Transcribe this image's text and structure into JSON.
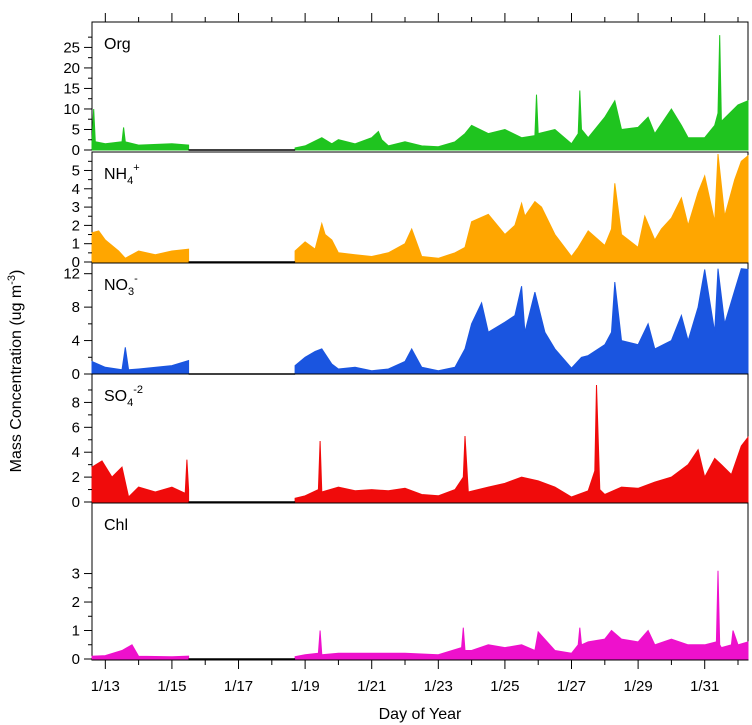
{
  "chart_data": {
    "type": "area",
    "xlabel": "Day of Year",
    "ylabel": "Mass Concentration (ug m⁻³)",
    "xlim": [
      12.6,
      32.3
    ],
    "x_tick_labels": [
      {
        "x": 13,
        "label": "1/13"
      },
      {
        "x": 15,
        "label": "1/15"
      },
      {
        "x": 17,
        "label": "1/17"
      },
      {
        "x": 19,
        "label": "1/19"
      },
      {
        "x": 21,
        "label": "1/21"
      },
      {
        "x": 23,
        "label": "1/23"
      },
      {
        "x": 25,
        "label": "1/25"
      },
      {
        "x": 27,
        "label": "1/27"
      },
      {
        "x": 29,
        "label": "1/29"
      },
      {
        "x": 31,
        "label": "1/31"
      }
    ],
    "data_gap": [
      15.5,
      18.7
    ],
    "panels": [
      {
        "key": "org",
        "label": {
          "base": "Org",
          "sub": "",
          "sup": ""
        },
        "color": "#1fc41f",
        "ylim": [
          0,
          29
        ],
        "yticks": [
          0,
          5,
          10,
          15,
          20,
          25
        ],
        "minor_step": 2.5,
        "x": [
          12.6,
          12.65,
          12.7,
          13.0,
          13.5,
          13.55,
          13.6,
          14.0,
          15.0,
          15.5,
          18.7,
          19.0,
          19.5,
          19.8,
          20.0,
          20.5,
          21.0,
          21.2,
          21.3,
          21.5,
          22.0,
          22.5,
          23.0,
          23.5,
          23.8,
          24.0,
          24.5,
          25.0,
          25.5,
          25.9,
          25.95,
          26.0,
          26.5,
          27.0,
          27.2,
          27.25,
          27.3,
          27.5,
          28.0,
          28.3,
          28.5,
          29.0,
          29.3,
          29.5,
          30.0,
          30.3,
          30.5,
          31.0,
          31.3,
          31.4,
          31.45,
          31.5,
          32.0,
          32.3
        ],
        "y": [
          2,
          10,
          2,
          1.5,
          2,
          5.5,
          2,
          1.2,
          1.5,
          1.2,
          0.5,
          1,
          3,
          1.5,
          2.5,
          1.5,
          3,
          4.5,
          2.5,
          1,
          2,
          1,
          0.8,
          2,
          4,
          6,
          4,
          5,
          3,
          3.5,
          13.5,
          4,
          5,
          1.5,
          4,
          14.5,
          5,
          3,
          8,
          12,
          5,
          5.5,
          8,
          4,
          10,
          6,
          3,
          3,
          6,
          9,
          28,
          7,
          11,
          12
        ]
      },
      {
        "key": "nh4",
        "label": {
          "base": "NH",
          "sub": "4",
          "sup": "+"
        },
        "color": "#ffa600",
        "ylim": [
          0,
          5.9
        ],
        "yticks": [
          0,
          1,
          2,
          3,
          4,
          5
        ],
        "minor_step": 0.5,
        "x": [
          12.6,
          12.8,
          13.0,
          13.4,
          13.6,
          14.0,
          14.5,
          15.0,
          15.5,
          18.7,
          19.0,
          19.3,
          19.5,
          19.6,
          19.8,
          20.0,
          20.5,
          21.0,
          21.5,
          22.0,
          22.2,
          22.5,
          23.0,
          23.5,
          23.8,
          24.0,
          24.5,
          25.0,
          25.3,
          25.5,
          25.6,
          25.9,
          26.1,
          26.5,
          27.0,
          27.2,
          27.5,
          28.0,
          28.2,
          28.3,
          28.5,
          29.0,
          29.2,
          29.5,
          29.7,
          30.0,
          30.3,
          30.5,
          30.8,
          31.0,
          31.3,
          31.4,
          31.6,
          31.9,
          32.1,
          32.3
        ],
        "y": [
          1.6,
          1.7,
          1.2,
          0.6,
          0.2,
          0.6,
          0.4,
          0.6,
          0.7,
          0.6,
          1.1,
          0.7,
          2.1,
          1.5,
          1.2,
          0.5,
          0.4,
          0.3,
          0.5,
          1.0,
          1.8,
          0.3,
          0.2,
          0.5,
          0.8,
          2.2,
          2.6,
          1.5,
          2.0,
          3.2,
          2.5,
          3.3,
          3.0,
          1.5,
          0.3,
          0.8,
          1.7,
          0.9,
          1.8,
          4.3,
          1.5,
          0.8,
          2.5,
          1.2,
          1.8,
          2.4,
          3.5,
          2.0,
          3.8,
          4.7,
          2.2,
          5.9,
          2.5,
          4.5,
          5.5,
          5.8
        ]
      },
      {
        "key": "no3",
        "label": {
          "base": "NO",
          "sub": "3",
          "sup": "-"
        },
        "color": "#1a55e0",
        "ylim": [
          0,
          12.8
        ],
        "yticks": [
          0,
          4,
          8,
          12
        ],
        "minor_step": 2,
        "x": [
          12.6,
          13.0,
          13.5,
          13.6,
          13.7,
          14.0,
          15.0,
          15.5,
          18.7,
          19.0,
          19.3,
          19.5,
          19.8,
          20.0,
          20.5,
          21.0,
          21.5,
          22.0,
          22.2,
          22.5,
          23.0,
          23.5,
          23.8,
          24.0,
          24.3,
          24.5,
          25.0,
          25.3,
          25.5,
          25.6,
          25.9,
          26.2,
          26.5,
          27.0,
          27.3,
          27.5,
          28.0,
          28.2,
          28.3,
          28.5,
          29.0,
          29.3,
          29.5,
          30.0,
          30.3,
          30.5,
          30.8,
          31.0,
          31.3,
          31.4,
          31.6,
          31.9,
          32.1,
          32.3
        ],
        "y": [
          1.5,
          0.8,
          0.5,
          3.2,
          0.5,
          0.6,
          1.0,
          1.6,
          1.0,
          2.0,
          2.7,
          3.0,
          1.2,
          0.6,
          0.8,
          0.4,
          0.6,
          1.5,
          3.0,
          0.8,
          0.4,
          0.8,
          3.0,
          6.0,
          8.5,
          5.0,
          6.2,
          7.0,
          10.5,
          5.0,
          9.8,
          5.0,
          3.0,
          0.7,
          2.0,
          2.2,
          3.5,
          5.0,
          11.0,
          4.0,
          3.5,
          6.0,
          3.0,
          4.0,
          7.0,
          4.0,
          8.0,
          12.5,
          5.0,
          12.6,
          6.0,
          10.0,
          12.6,
          12.5
        ]
      },
      {
        "key": "so4",
        "label": {
          "base": "SO",
          "sub": "4",
          "sup": "-2"
        },
        "color": "#f00b0b",
        "ylim": [
          0,
          9.4
        ],
        "yticks": [
          0,
          2,
          4,
          6,
          8
        ],
        "minor_step": 1,
        "x": [
          12.6,
          12.9,
          13.2,
          13.5,
          13.7,
          14.0,
          14.5,
          15.0,
          15.4,
          15.45,
          15.5,
          18.7,
          19.0,
          19.4,
          19.45,
          19.5,
          20.0,
          20.5,
          21.0,
          21.5,
          22.0,
          22.5,
          23.0,
          23.5,
          23.75,
          23.8,
          23.9,
          24.5,
          25.0,
          25.5,
          26.0,
          26.5,
          27.0,
          27.5,
          27.7,
          27.75,
          27.85,
          28.0,
          28.5,
          29.0,
          29.5,
          30.0,
          30.5,
          30.8,
          31.0,
          31.3,
          31.5,
          31.8,
          32.1,
          32.3
        ],
        "y": [
          2.8,
          3.3,
          2.0,
          2.8,
          0.4,
          1.2,
          0.8,
          1.2,
          0.7,
          3.4,
          1.0,
          0.3,
          0.5,
          1.0,
          4.9,
          0.8,
          1.2,
          0.9,
          1.0,
          0.9,
          1.1,
          0.6,
          0.5,
          1.0,
          2.0,
          5.3,
          0.8,
          1.2,
          1.5,
          2.0,
          1.7,
          1.2,
          0.4,
          0.9,
          2.5,
          9.4,
          1.0,
          0.6,
          1.2,
          1.1,
          1.6,
          2.0,
          3.0,
          4.2,
          2.0,
          3.5,
          3.0,
          2.2,
          4.5,
          5.2
        ]
      },
      {
        "key": "chl",
        "label": {
          "base": "Chl",
          "sub": "",
          "sup": ""
        },
        "color": "#ee11cc",
        "ylim": [
          0,
          3.3
        ],
        "yticks": [
          0,
          1,
          2,
          3
        ],
        "minor_step": 0.5,
        "x": [
          12.6,
          13.0,
          13.5,
          13.8,
          14.0,
          15.0,
          15.5,
          18.7,
          19.0,
          19.4,
          19.45,
          19.5,
          20.0,
          21.0,
          22.0,
          23.0,
          23.7,
          23.75,
          23.8,
          24.0,
          24.5,
          25.0,
          25.5,
          25.9,
          26.0,
          26.5,
          27.0,
          27.2,
          27.25,
          27.3,
          27.5,
          28.0,
          28.2,
          28.5,
          29.0,
          29.3,
          29.5,
          30.0,
          30.5,
          31.0,
          31.35,
          31.4,
          31.45,
          31.5,
          31.8,
          31.85,
          32.0,
          32.3
        ],
        "y": [
          0.1,
          0.12,
          0.3,
          0.5,
          0.1,
          0.08,
          0.1,
          0.08,
          0.15,
          0.2,
          1.0,
          0.15,
          0.2,
          0.2,
          0.2,
          0.15,
          0.4,
          1.1,
          0.3,
          0.3,
          0.5,
          0.4,
          0.5,
          0.3,
          0.95,
          0.3,
          0.2,
          0.5,
          1.1,
          0.5,
          0.6,
          0.7,
          1.0,
          0.7,
          0.6,
          1.0,
          0.5,
          0.7,
          0.5,
          0.5,
          0.6,
          3.1,
          0.5,
          0.4,
          0.5,
          1.0,
          0.5,
          0.6
        ]
      }
    ]
  }
}
